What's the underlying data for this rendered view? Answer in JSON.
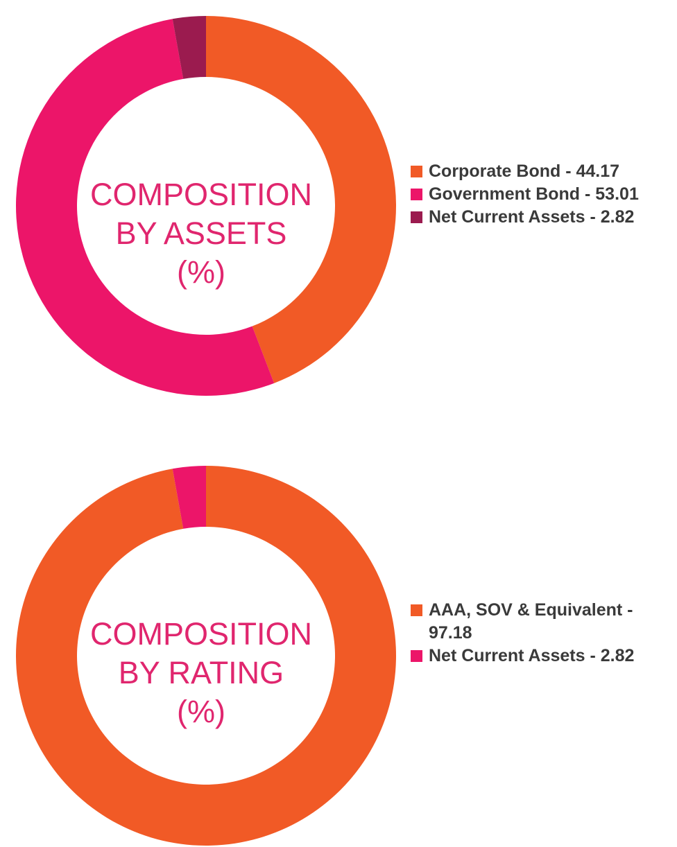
{
  "chart_data": [
    {
      "type": "pie",
      "title_lines": [
        "COMPOSITION",
        "BY ASSETS",
        "(%)"
      ],
      "categories": [
        "Corporate Bond",
        "Government Bond",
        "Net Current Assets"
      ],
      "values": [
        44.17,
        53.01,
        2.82
      ],
      "legend_labels": [
        "Corporate Bond - 44.17",
        "Government Bond - 53.01",
        "Net Current Assets - 2.82"
      ],
      "colors": [
        "#f15a26",
        "#ec1569",
        "#9b1b4f"
      ],
      "legend_position": "right"
    },
    {
      "type": "pie",
      "title_lines": [
        "COMPOSITION",
        "BY RATING",
        "(%)"
      ],
      "categories": [
        "AAA, SOV & Equivalent",
        "Net Current Assets"
      ],
      "values": [
        97.18,
        2.82
      ],
      "legend_labels": [
        "AAA, SOV & Equivalent - 97.18",
        "Net Current Assets - 2.82"
      ],
      "colors": [
        "#f15a26",
        "#ec1569"
      ],
      "legend_position": "right"
    }
  ]
}
